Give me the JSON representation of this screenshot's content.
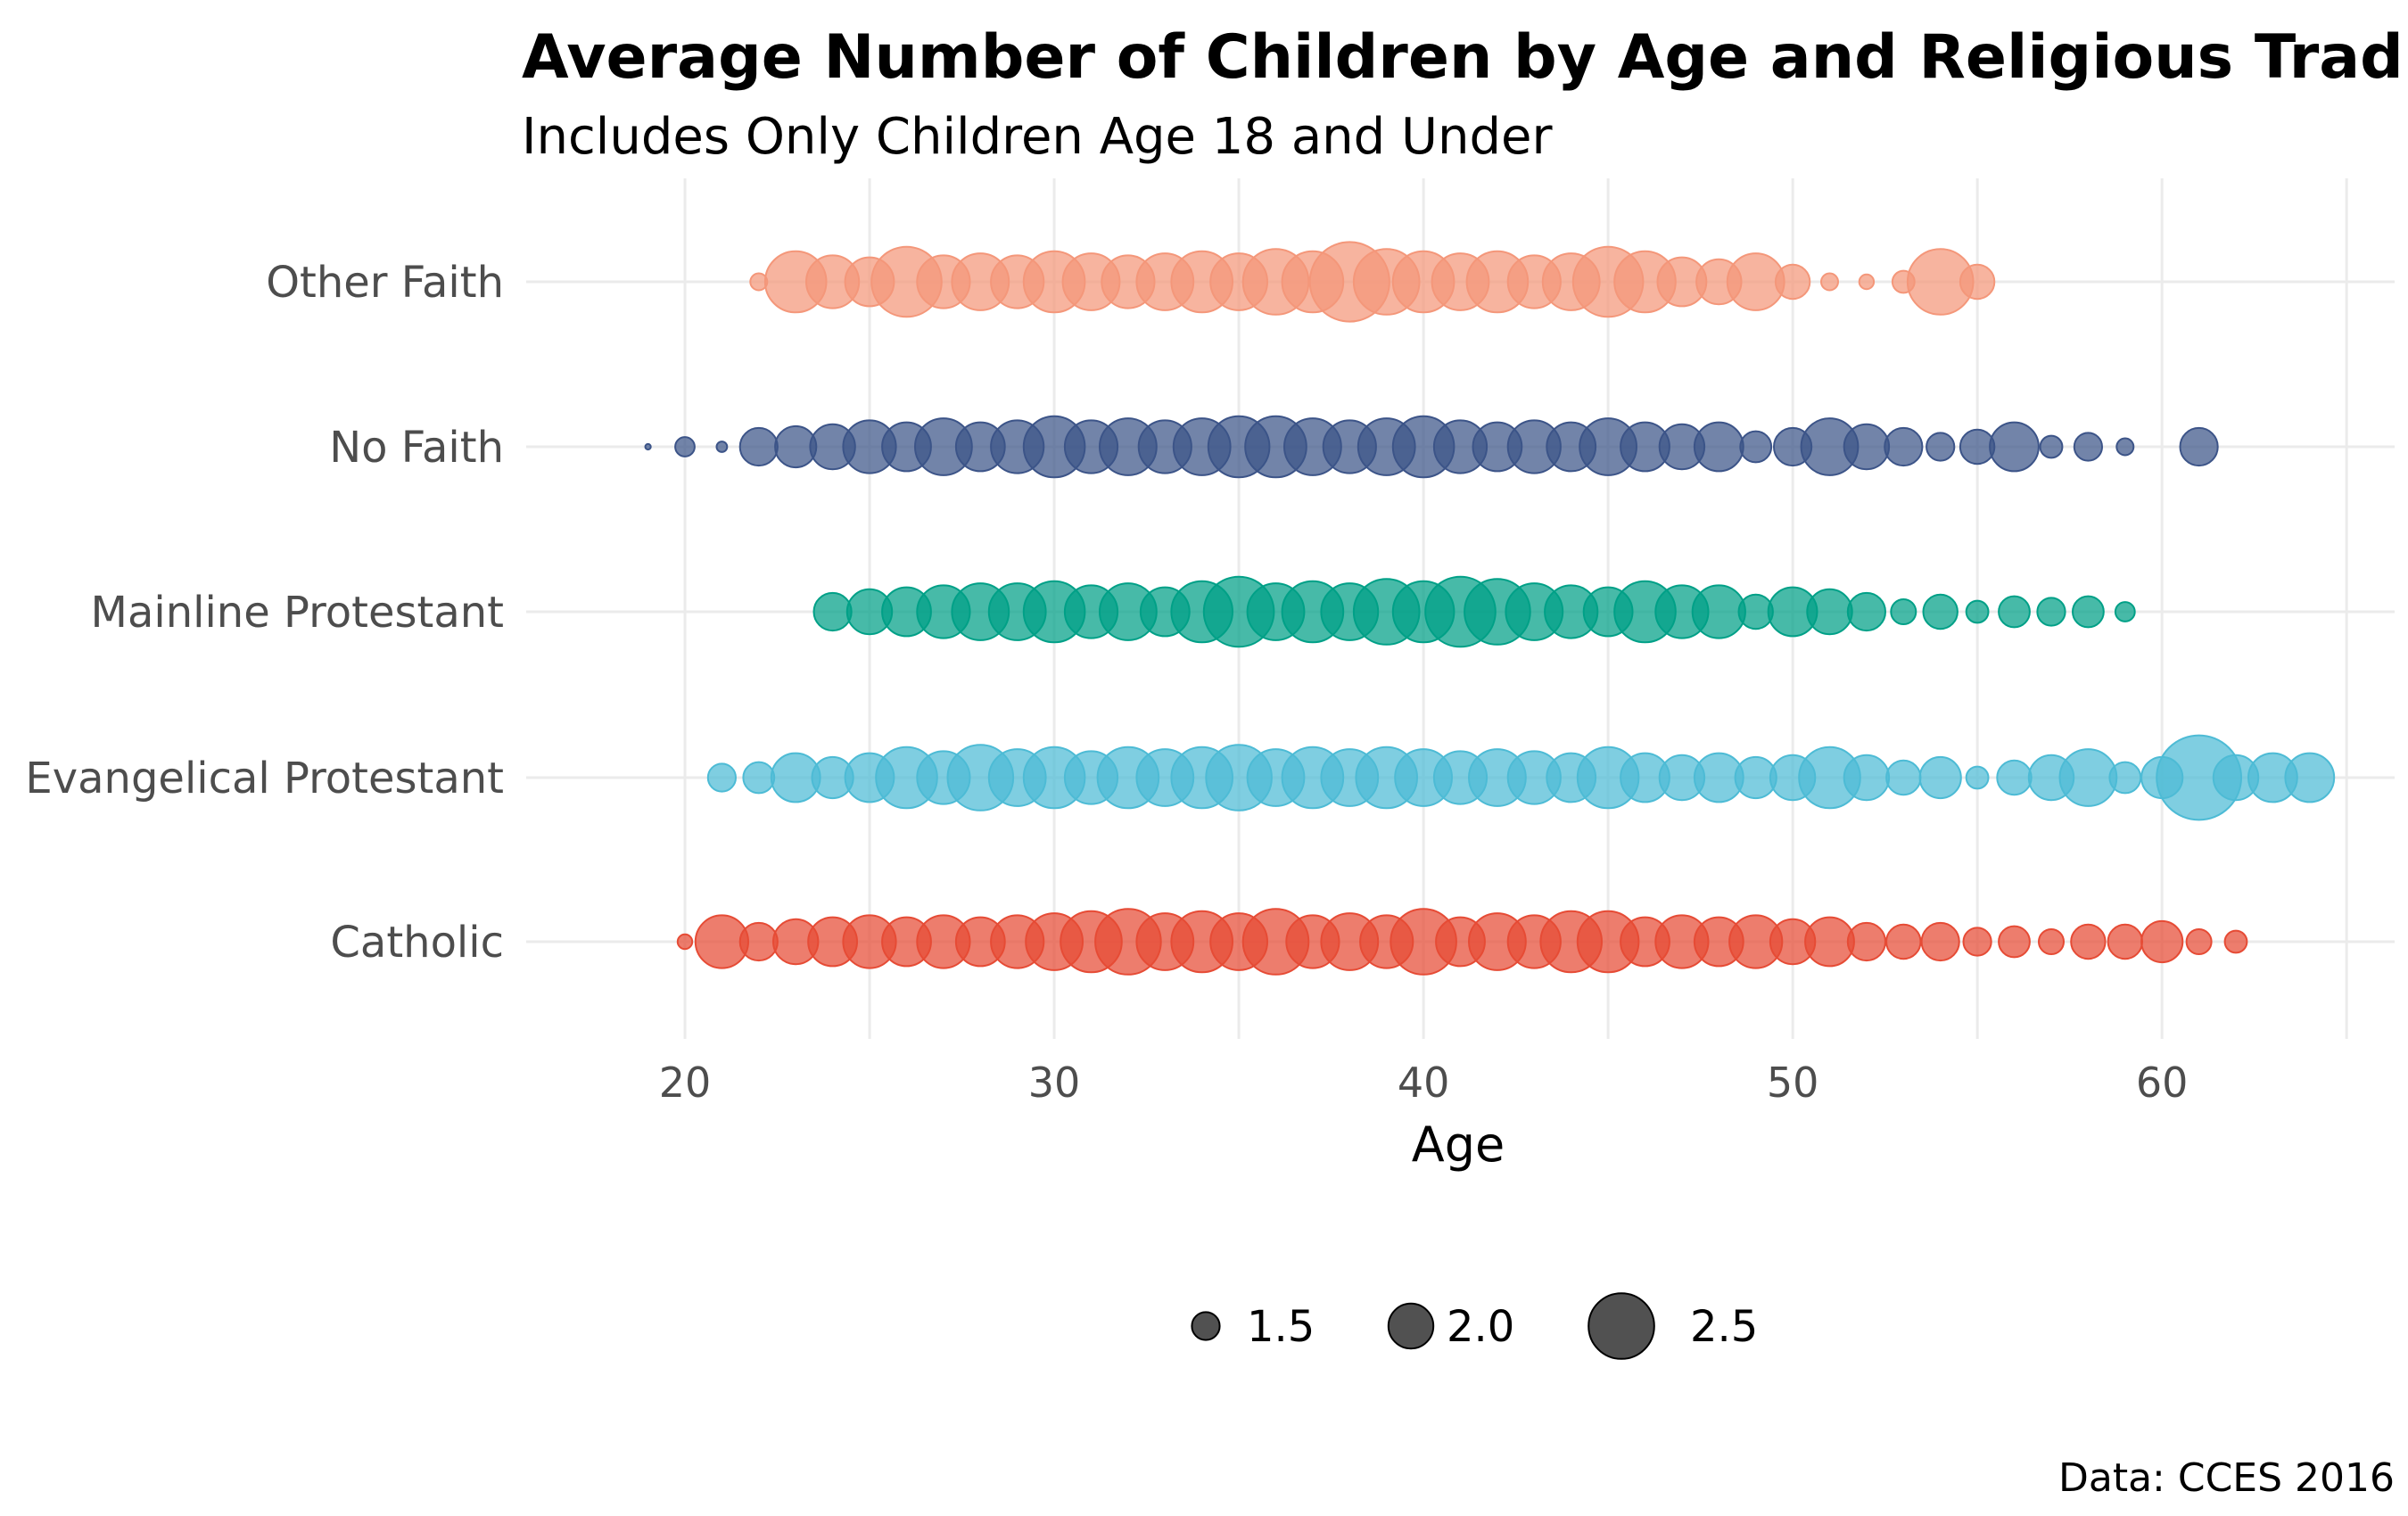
{
  "chart_data": {
    "type": "scatter",
    "title": "Average Number of Children by Age and Religious Tradition",
    "subtitle": "Includes Only Children Age 18 and Under",
    "xlabel": "Age",
    "ylabel": "",
    "caption": "Data: CCES 2016",
    "xlim": [
      15.7,
      66.3
    ],
    "x_ticks": [
      20,
      30,
      40,
      50,
      60
    ],
    "grid": true,
    "legend": {
      "position": "bottom",
      "size_breaks": [
        1.5,
        2.0,
        2.5
      ],
      "size_labels": [
        "1.5",
        "2.0",
        "2.5"
      ]
    },
    "categories": [
      "Other Faith",
      "No Faith",
      "Mainline Protestant",
      "Evangelical Protestant",
      "Catholic"
    ],
    "series": [
      {
        "name": "Other Faith",
        "color": "#F4977A",
        "ages": [
          22,
          23,
          24,
          25,
          26,
          27,
          28,
          29,
          30,
          31,
          32,
          33,
          34,
          35,
          36,
          37,
          38,
          39,
          40,
          41,
          42,
          43,
          44,
          45,
          46,
          47,
          48,
          49,
          50,
          51,
          52,
          53,
          54,
          55
        ],
        "values": [
          1.1,
          2.4,
          2.2,
          2.1,
          2.6,
          2.2,
          2.3,
          2.2,
          2.4,
          2.3,
          2.2,
          2.3,
          2.4,
          2.3,
          2.5,
          2.4,
          2.8,
          2.5,
          2.4,
          2.3,
          2.4,
          2.2,
          2.3,
          2.6,
          2.4,
          2.1,
          2.0,
          2.3,
          1.7,
          1.1,
          1.0,
          1.3,
          2.5,
          1.7
        ]
      },
      {
        "name": "No Faith",
        "color": "#3C5488",
        "ages": [
          19,
          20,
          21,
          22,
          23,
          24,
          25,
          26,
          27,
          28,
          29,
          30,
          31,
          32,
          33,
          34,
          35,
          36,
          37,
          38,
          39,
          40,
          41,
          42,
          43,
          44,
          45,
          46,
          47,
          48,
          49,
          50,
          51,
          52,
          53,
          54,
          55,
          56,
          57,
          58,
          59,
          61
        ],
        "values": [
          0.5,
          1.2,
          0.8,
          1.8,
          1.9,
          2.0,
          2.2,
          2.1,
          2.3,
          2.1,
          2.2,
          2.4,
          2.2,
          2.3,
          2.2,
          2.3,
          2.4,
          2.4,
          2.3,
          2.2,
          2.3,
          2.4,
          2.2,
          2.1,
          2.2,
          2.1,
          2.3,
          2.1,
          2.0,
          2.1,
          1.6,
          1.8,
          2.3,
          2.0,
          1.8,
          1.5,
          1.7,
          2.1,
          1.3,
          1.5,
          1.1,
          1.8
        ]
      },
      {
        "name": "Mainline Protestant",
        "color": "#00A087",
        "ages": [
          24,
          25,
          26,
          27,
          28,
          29,
          30,
          31,
          32,
          33,
          34,
          35,
          36,
          37,
          38,
          39,
          40,
          41,
          42,
          43,
          44,
          45,
          46,
          47,
          48,
          49,
          50,
          51,
          52,
          53,
          54,
          55,
          56,
          57,
          58,
          59
        ],
        "values": [
          1.8,
          2.0,
          2.1,
          2.2,
          2.3,
          2.3,
          2.4,
          2.2,
          2.3,
          2.1,
          2.4,
          2.6,
          2.3,
          2.4,
          2.3,
          2.5,
          2.4,
          2.6,
          2.5,
          2.3,
          2.2,
          2.1,
          2.4,
          2.2,
          2.2,
          1.7,
          2.1,
          2.0,
          1.8,
          1.4,
          1.7,
          1.3,
          1.6,
          1.5,
          1.6,
          1.2
        ]
      },
      {
        "name": "Evangelical Protestant",
        "color": "#4DBBD5",
        "ages": [
          21,
          22,
          23,
          24,
          25,
          26,
          27,
          28,
          29,
          30,
          31,
          32,
          33,
          34,
          35,
          36,
          37,
          38,
          39,
          40,
          41,
          42,
          43,
          44,
          45,
          46,
          47,
          48,
          49,
          50,
          51,
          52,
          53,
          54,
          55,
          56,
          57,
          58,
          59,
          60,
          61,
          62,
          63,
          64
        ],
        "values": [
          1.5,
          1.6,
          2.1,
          1.9,
          2.1,
          2.4,
          2.2,
          2.5,
          2.3,
          2.4,
          2.2,
          2.4,
          2.3,
          2.4,
          2.5,
          2.3,
          2.4,
          2.3,
          2.4,
          2.3,
          2.2,
          2.3,
          2.2,
          2.1,
          2.4,
          2.1,
          2.0,
          2.1,
          1.9,
          2.0,
          2.4,
          2.0,
          1.7,
          1.9,
          1.3,
          1.7,
          2.0,
          2.3,
          1.6,
          1.9,
          2.9,
          2.0,
          2.1,
          2.1
        ]
      },
      {
        "name": "Catholic",
        "color": "#E64B35",
        "ages": [
          20,
          21,
          22,
          23,
          24,
          25,
          26,
          27,
          28,
          29,
          30,
          31,
          32,
          33,
          34,
          35,
          36,
          37,
          38,
          39,
          40,
          41,
          42,
          43,
          44,
          45,
          46,
          47,
          48,
          49,
          50,
          51,
          52,
          53,
          54,
          55,
          56,
          57,
          58,
          59,
          60,
          61,
          62
        ],
        "values": [
          1.0,
          2.2,
          1.8,
          2.0,
          2.1,
          2.2,
          2.1,
          2.2,
          2.1,
          2.2,
          2.3,
          2.4,
          2.5,
          2.3,
          2.4,
          2.3,
          2.5,
          2.2,
          2.3,
          2.2,
          2.5,
          2.1,
          2.3,
          2.2,
          2.4,
          2.4,
          2.1,
          2.2,
          2.1,
          2.2,
          2.0,
          2.1,
          1.8,
          1.7,
          1.8,
          1.5,
          1.6,
          1.4,
          1.7,
          1.7,
          1.9,
          1.4,
          1.3
        ]
      }
    ]
  }
}
